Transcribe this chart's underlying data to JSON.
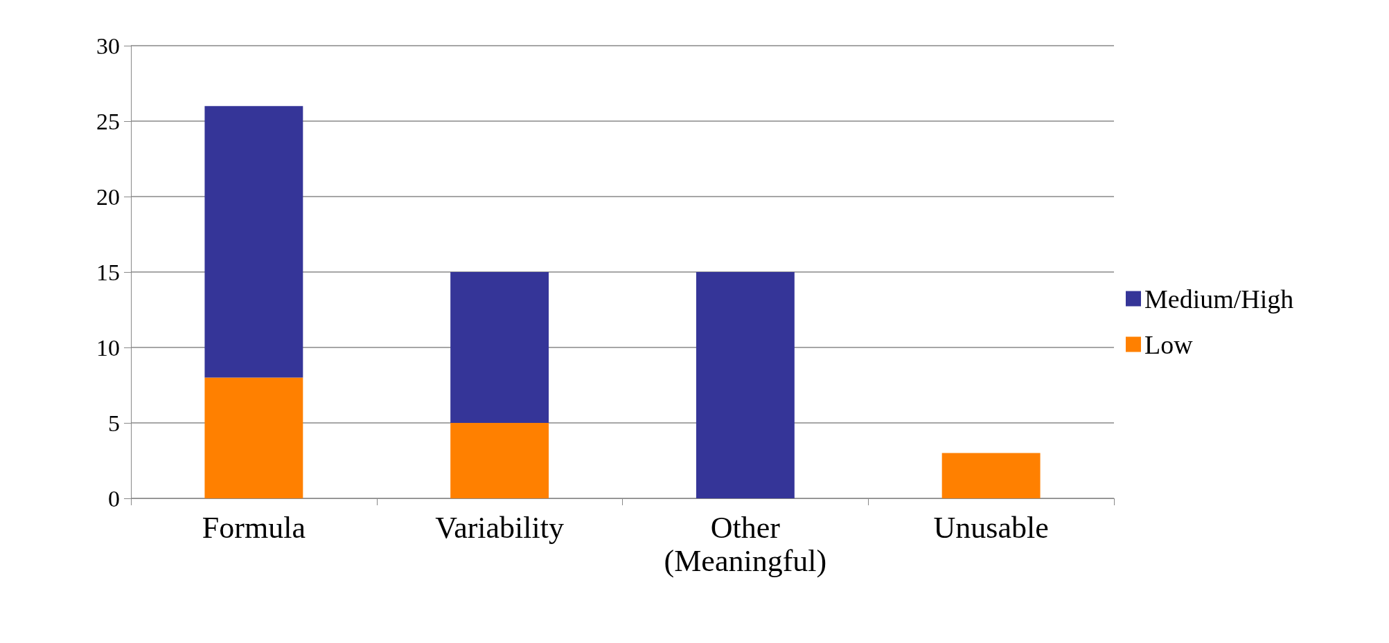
{
  "chart_data": {
    "type": "bar",
    "stacked": true,
    "categories": [
      "Formula",
      "Variability",
      "Other (Meaningful)",
      "Unusable"
    ],
    "series": [
      {
        "name": "Low",
        "color": "#ff8000",
        "values": [
          8,
          5,
          0,
          3
        ]
      },
      {
        "name": "Medium/High",
        "color": "#353598",
        "values": [
          18,
          10,
          15,
          0
        ]
      }
    ],
    "ylim": [
      0,
      30
    ],
    "yticks": [
      0,
      5,
      10,
      15,
      20,
      25,
      30
    ],
    "grid": "y",
    "legend": "right"
  }
}
